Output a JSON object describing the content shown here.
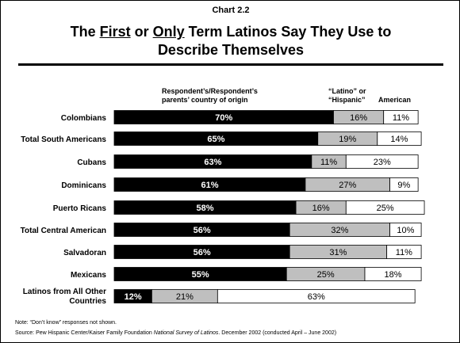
{
  "chart_number": "Chart 2.2",
  "title": {
    "part1": "The ",
    "first": "First",
    "part2": " or ",
    "only": "Only",
    "part3": " Term Latinos Say They Use to",
    "line2": "Describe Themselves"
  },
  "legend": {
    "origin_line1": "Respondent’s/Respondent’s",
    "origin_line2": "parents’ country of origin",
    "latino_line1": "“Latino” or",
    "latino_line2": "“Hispanic”",
    "american": "American"
  },
  "footnote": "Note: “Don’t know” responses not shown.",
  "source": {
    "prefix": "Source: Pew Hispanic Center/Kaiser Family Foundation ",
    "italic": "National Survey of Latinos",
    "suffix": ". December 2002 (conducted April – June 2002)"
  },
  "colors": {
    "origin": "#000000",
    "latino": "#bfbfbf",
    "american": "#ffffff"
  },
  "chart_data": {
    "type": "bar",
    "orientation": "horizontal",
    "stacked": true,
    "categories": [
      "Colombians",
      "Total South Americans",
      "Cubans",
      "Dominicans",
      "Puerto Ricans",
      "Total Central American",
      "Salvadoran",
      "Mexicans",
      "Latinos from All Other Countries"
    ],
    "series": [
      {
        "name": "Respondent’s/Respondent’s parents’ country of origin",
        "values": [
          70,
          65,
          63,
          61,
          58,
          56,
          56,
          55,
          12
        ]
      },
      {
        "name": "“Latino” or “Hispanic”",
        "values": [
          16,
          19,
          11,
          27,
          16,
          32,
          31,
          25,
          21
        ]
      },
      {
        "name": "American",
        "values": [
          11,
          14,
          23,
          9,
          25,
          10,
          11,
          18,
          63
        ]
      }
    ],
    "value_labels": [
      [
        "70%",
        "16%",
        "11%"
      ],
      [
        "65%",
        "19%",
        "14%"
      ],
      [
        "63%",
        "11%",
        "23%"
      ],
      [
        "61%",
        "27%",
        "9%"
      ],
      [
        "58%",
        "16%",
        "25%"
      ],
      [
        "56%",
        "32%",
        "10%"
      ],
      [
        "56%",
        "31%",
        "11%"
      ],
      [
        "55%",
        "25%",
        "18%"
      ],
      [
        "12%",
        "21%",
        "63%"
      ]
    ],
    "xlim": [
      0,
      100
    ],
    "grid": false,
    "legend_position": "top"
  }
}
